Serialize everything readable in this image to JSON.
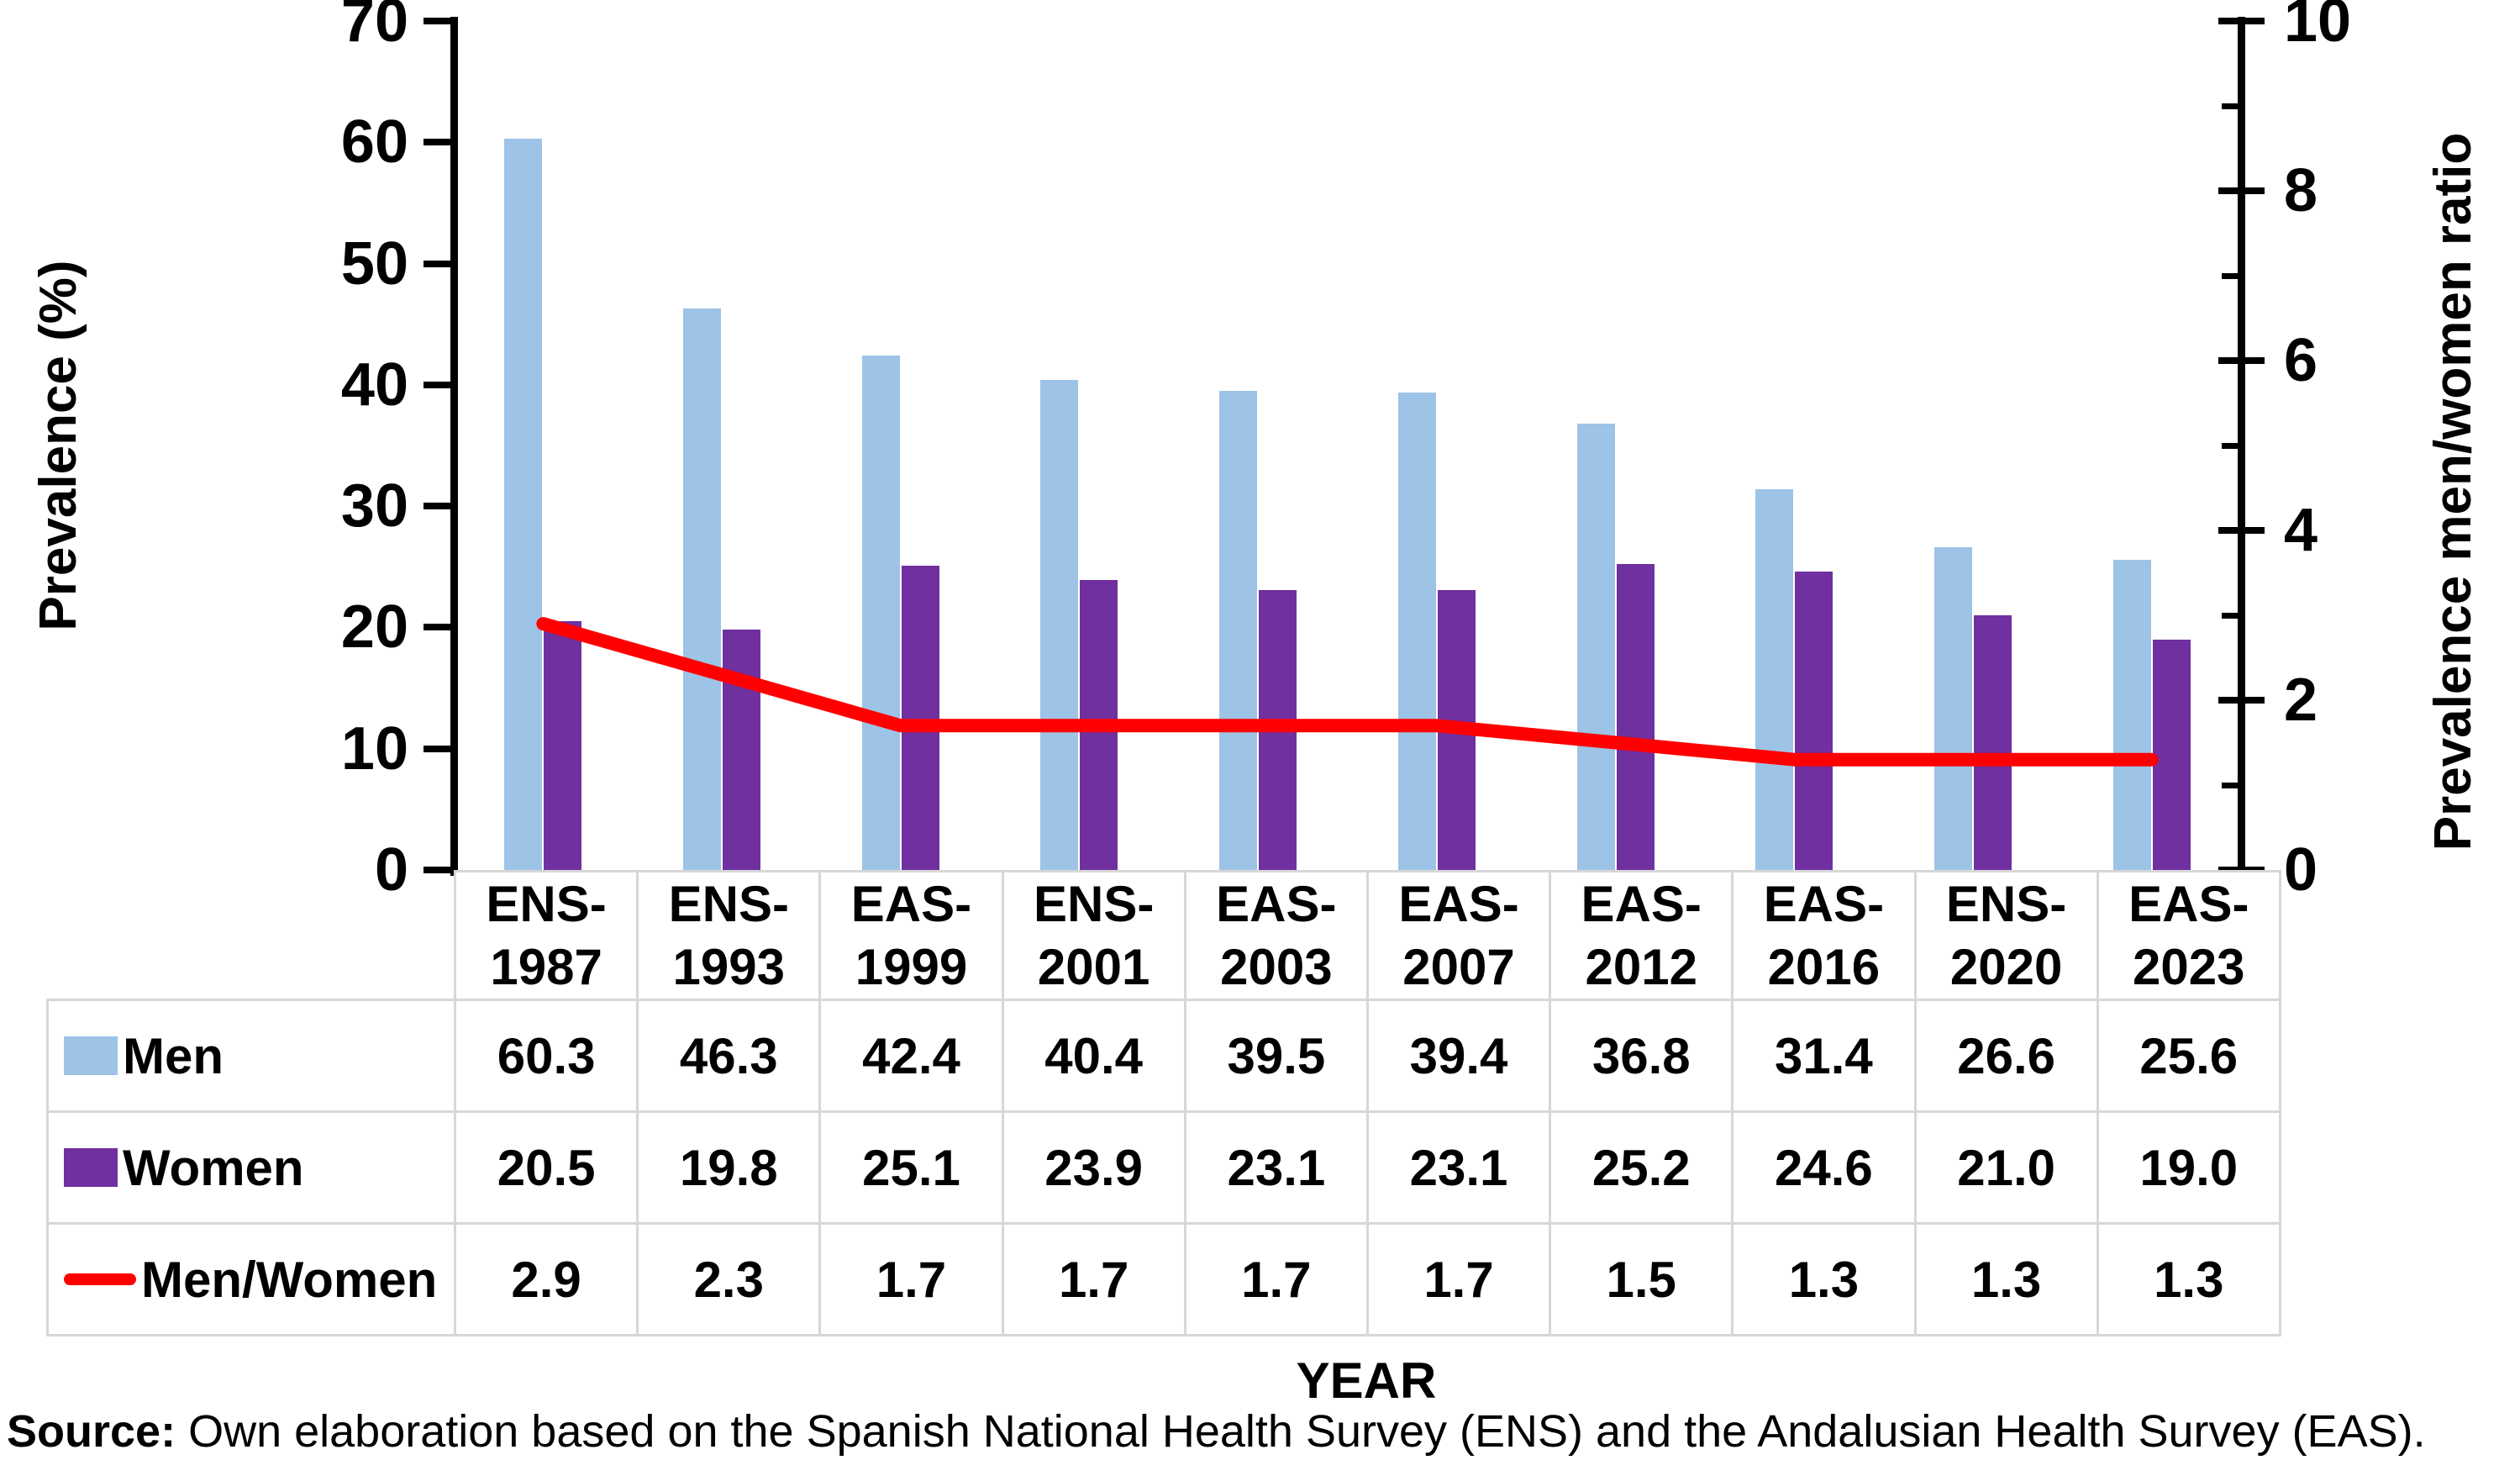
{
  "chart_data": {
    "type": "bar",
    "subtype": "grouped bars with overlaid line on secondary axis",
    "categories": [
      "ENS-1987",
      "ENS-1993",
      "EAS-1999",
      "ENS-2001",
      "EAS-2003",
      "EAS-2007",
      "EAS-2012",
      "EAS-2016",
      "ENS-2020",
      "EAS-2023"
    ],
    "series": [
      {
        "name": "Men",
        "type": "bar",
        "axis": "left",
        "color": "#9DC3E6",
        "values": [
          60.3,
          46.3,
          42.4,
          40.4,
          39.5,
          39.4,
          36.8,
          31.4,
          26.6,
          25.6
        ]
      },
      {
        "name": "Women",
        "type": "bar",
        "axis": "left",
        "color": "#7030A0",
        "values": [
          20.5,
          19.8,
          25.1,
          23.9,
          23.1,
          23.1,
          25.2,
          24.6,
          21.0,
          19.0
        ]
      },
      {
        "name": "Men/Women",
        "type": "line",
        "axis": "right",
        "color": "#FF0000",
        "values": [
          2.9,
          2.3,
          1.7,
          1.7,
          1.7,
          1.7,
          1.5,
          1.3,
          1.3,
          1.3
        ]
      }
    ],
    "left_axis": {
      "label": "Prevalence (%)",
      "min": 0,
      "max": 70,
      "tick_step": 10,
      "tick_labels": [
        "0",
        "10",
        "20",
        "30",
        "40",
        "50",
        "60",
        "70"
      ]
    },
    "right_axis": {
      "label": "Prevalence men/women ratio",
      "min": 0,
      "max": 10,
      "tick_step": 2,
      "minor_tick_step": 1,
      "tick_labels": [
        "0",
        "2",
        "4",
        "6",
        "8",
        "10"
      ]
    },
    "x_axis": {
      "label": "YEAR"
    },
    "grid": false,
    "legend_position": "data-table left column",
    "data_table_shown": true,
    "value_decimals": 1
  },
  "source_note": {
    "prefix": "Source:",
    "text": " Own elaboration based on the Spanish National Health Survey (ENS) and the Andalusian Health Survey (EAS)."
  }
}
